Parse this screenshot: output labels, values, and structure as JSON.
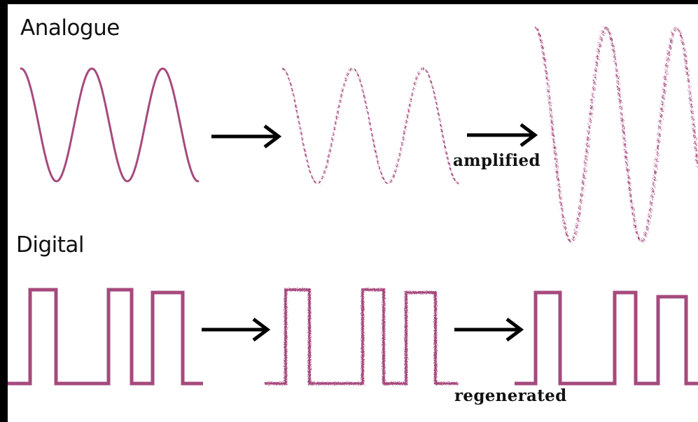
{
  "headings": {
    "analogue": "Analogue",
    "digital": "Digital"
  },
  "captions": {
    "amplified": "amplified",
    "regenerated": "regenerated"
  },
  "colors": {
    "signal": "#a64a7d",
    "arrow": "#000000",
    "background": "#ffffff",
    "frame": "#000000"
  },
  "icons": {
    "arrow": "right-arrow-icon"
  }
}
